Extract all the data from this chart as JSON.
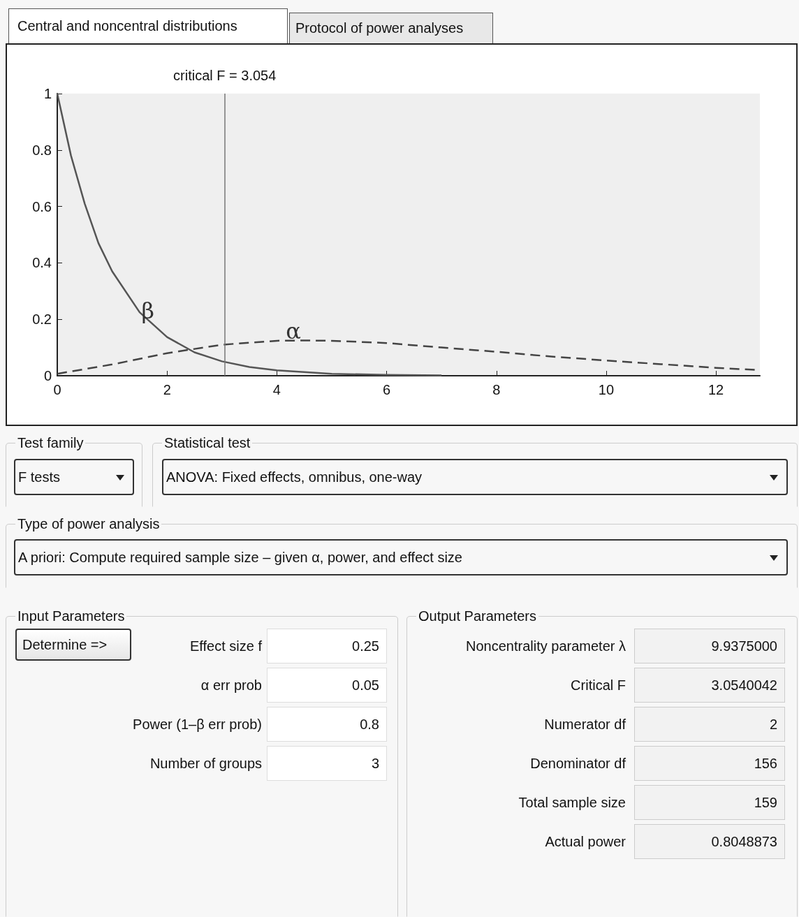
{
  "chart_data": [
    {
      "type": "line",
      "xlim": [
        0,
        12.8
      ],
      "xticks": [
        0,
        2,
        4,
        6,
        8,
        10,
        12
      ],
      "ylim": [
        0,
        1
      ],
      "yticks": [
        0,
        0.2,
        0.4,
        0.6,
        0.8,
        1
      ],
      "marker": "none",
      "grid": false,
      "ref_lines": [
        {
          "axis": "x",
          "value": 3.054,
          "label": "critical F = 3.054",
          "color": "#777777"
        }
      ],
      "annotations": [
        {
          "text": "β",
          "x": 1.65,
          "y": 0.19
        },
        {
          "text": "α",
          "x": 4.3,
          "y": 0.12
        }
      ],
      "series": [
        {
          "color": "#555555",
          "line_style": "solid",
          "x": [
            0,
            0.25,
            0.5,
            0.75,
            1,
            1.5,
            2,
            2.5,
            3,
            3.5,
            4,
            5,
            6,
            7
          ],
          "values": [
            1,
            0.78,
            0.61,
            0.47,
            0.37,
            0.225,
            0.137,
            0.083,
            0.051,
            0.031,
            0.019,
            0.007,
            0.003,
            0.001
          ]
        },
        {
          "color": "#444444",
          "line_style": "dashed",
          "x": [
            0,
            1,
            2,
            3,
            4,
            4.5,
            5,
            6,
            7,
            8,
            9,
            10,
            11,
            12,
            12.8
          ],
          "values": [
            0.007,
            0.04,
            0.08,
            0.11,
            0.124,
            0.125,
            0.124,
            0.116,
            0.1,
            0.085,
            0.068,
            0.054,
            0.041,
            0.028,
            0.02
          ]
        }
      ]
    },
    {
      "type": "other",
      "annotations": [
        "Central and noncentral distributions",
        "Protocol of power analyses",
        "Test family",
        "F tests",
        "Statistical test",
        "ANOVA: Fixed effects, omnibus, one-way",
        "Type of power analysis",
        "A priori: Compute required sample size – given α, power, and effect size",
        "Input Parameters",
        "Determine =>",
        "Effect size f",
        "0.25",
        "α err prob",
        "0.05",
        "Power (1–β err prob)",
        "0.8",
        "Number of groups",
        "3",
        "Output Parameters",
        "Noncentrality parameter λ",
        "9.9375000",
        "Critical F",
        "3.0540042",
        "Numerator df",
        "2",
        "Denominator df",
        "156",
        "Total sample size",
        "159",
        "Actual power",
        "0.8048873"
      ]
    }
  ]
}
